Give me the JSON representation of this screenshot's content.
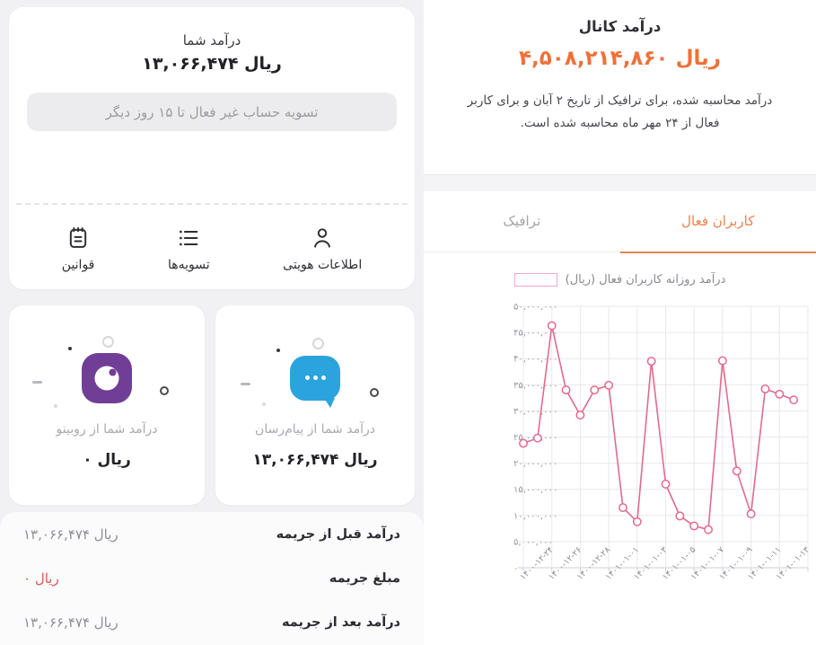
{
  "left": {
    "income_card": {
      "title": "درآمد شما",
      "amount": "۱۳,۰۶۶,۴۷۴ ریال",
      "settlement_note": "تسویه حساب غیر فعال تا ۱۵ روز دیگر"
    },
    "nav_tabs": [
      {
        "label": "اطلاعات هویتی",
        "icon": "person-icon"
      },
      {
        "label": "تسویه‌ها",
        "icon": "list-icon"
      },
      {
        "label": "قوانین",
        "icon": "rules-icon"
      }
    ],
    "source_cards": [
      {
        "label": "درآمد شما از پیام‌رسان",
        "amount": "۱۳,۰۶۶,۴۷۴ ریال",
        "icon": "messenger-icon",
        "icon_color": "#2ba3dc"
      },
      {
        "label": "درآمد شما از روبینو",
        "amount": "۰ ریال",
        "icon": "rubino-icon",
        "icon_color": "#713e97"
      }
    ],
    "summary_rows": [
      {
        "label": "درآمد قبل از جریمه",
        "value": "۱۳,۰۶۶,۴۷۴ ریال",
        "highlight": false
      },
      {
        "label": "مبلغ جریمه",
        "value": "۰ ریال",
        "highlight": true
      },
      {
        "label": "درآمد بعد از جریمه",
        "value": "۱۳,۰۶۶,۴۷۴ ریال",
        "highlight": false
      }
    ]
  },
  "right": {
    "title": "درآمد کانال",
    "amount": "۴,۵۰۸,۲۱۴,۸۶۰ ریال",
    "description": "درآمد محاسبه شده، برای ترافیک از تاریخ ۲ آبان و برای کاربر فعال از ۲۴ مهر ماه محاسبه شده است.",
    "tabs": [
      {
        "label": "کاربران فعال",
        "active": true
      },
      {
        "label": "ترافیک",
        "active": false
      }
    ]
  },
  "chart_data": {
    "type": "line",
    "title": "درآمد روزانه کاربران فعال (ریال)",
    "legend": "درآمد روزانه کاربران فعال (ریال)",
    "x": [
      "۱۴۰۰-۱۲-۲۴",
      "۱۴۰۰-۱۲-۲۵",
      "۱۴۰۰-۱۲-۲۶",
      "۱۴۰۰-۱۲-۲۷",
      "۱۴۰۰-۱۲-۲۸",
      "۱۴۰۰-۱۲-۲۹",
      "۱۴۰۱-۰۱-۰۱",
      "۱۴۰۱-۰۱-۰۲",
      "۱۴۰۱-۰۱-۰۳",
      "۱۴۰۱-۰۱-۰۴",
      "۱۴۰۱-۰۱-۰۵",
      "۱۴۰۱-۰۱-۰۶",
      "۱۴۰۱-۰۱-۰۷",
      "۱۴۰۱-۰۱-۰۸",
      "۱۴۰۱-۰۱-۰۹",
      "۱۴۰۱-۰۱-۱۰",
      "۱۴۰۱-۰۱-۱۱",
      "۱۴۰۱-۰۱-۱۲",
      "۱۴۰۱-۰۱-۱۳",
      "۱۴۰۱-۰۱-۱۴"
    ],
    "values": [
      23800000,
      24800000,
      46300000,
      34000000,
      29200000,
      34000000,
      34900000,
      11500000,
      8800000,
      39500000,
      16000000,
      9900000,
      8000000,
      7300000,
      39600000,
      18500000,
      10300000,
      34200000,
      33200000,
      32100000
    ],
    "x_tick_labels": [
      "۱۴۰۰-۱۲-۲۴",
      "۱۴۰۰-۱۲-۲۶",
      "۱۴۰۰-۱۲-۲۸",
      "۱۴۰۱-۰۱-۰۱",
      "۱۴۰۱-۰۱-۰۳",
      "۱۴۰۱-۰۱-۰۵",
      "۱۴۰۱-۰۱-۰۷",
      "۱۴۰۱-۰۱-۰۹",
      "۱۴۰۱-۰۱-۱۱",
      "۱۴۰۱-۰۱-۱۳"
    ],
    "x_tick_every": 2,
    "y_tick_labels": [
      "۵۰,۰۰۰,۰۰۰",
      "۴۵,۰۰۰,۰۰۰",
      "۴۰,۰۰۰,۰۰۰",
      "۳۵,۰۰۰,۰۰۰",
      "۳۰,۰۰۰,۰۰۰",
      "۲۵,۰۰۰,۰۰۰",
      "۲۰,۰۰۰,۰۰۰",
      "۱۵,۰۰۰,۰۰۰",
      "۱۰,۰۰۰,۰۰۰",
      "۵,۰۰۰,۰۰۰",
      "۰"
    ],
    "ylim": [
      0,
      50000000
    ],
    "grid": true,
    "legend_position": "top",
    "line_color": "#e26a8d",
    "legend_box_color": "#efa9bf"
  },
  "colors": {
    "accent_orange": "#ef7138",
    "penalty_red": "#d95757",
    "rubino_purple": "#713e97",
    "messenger_blue": "#2ba3dc",
    "chart_line": "#e26a8d"
  }
}
